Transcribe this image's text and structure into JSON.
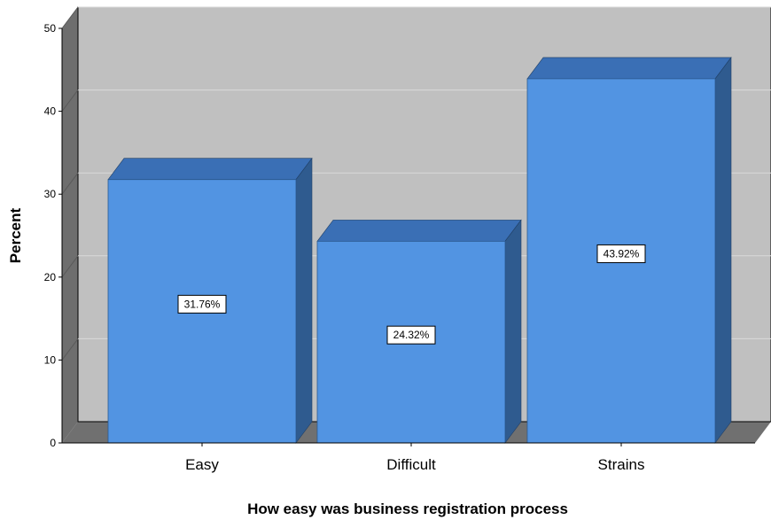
{
  "chart_data": {
    "type": "bar",
    "categories": [
      "Easy",
      "Difficult",
      "Strains"
    ],
    "values": [
      31.76,
      24.32,
      43.92
    ],
    "data_labels": [
      "31.76%",
      "24.32%",
      "43.92%"
    ],
    "xlabel": "How easy was business registration process",
    "ylabel": "Percent",
    "ylim": [
      0,
      50
    ],
    "yticks": [
      "0",
      "10",
      "20",
      "30",
      "40",
      "50"
    ],
    "grid": true,
    "style": "3d",
    "colors": {
      "bar_front": "#5294e2",
      "bar_top": "#3a6fb5",
      "bar_side": "#2f5b8f",
      "back_wall": "#c0c0c0",
      "side_wall": "#6e6e6e",
      "floor": "#707070",
      "gridline": "#d9d9d9"
    }
  }
}
